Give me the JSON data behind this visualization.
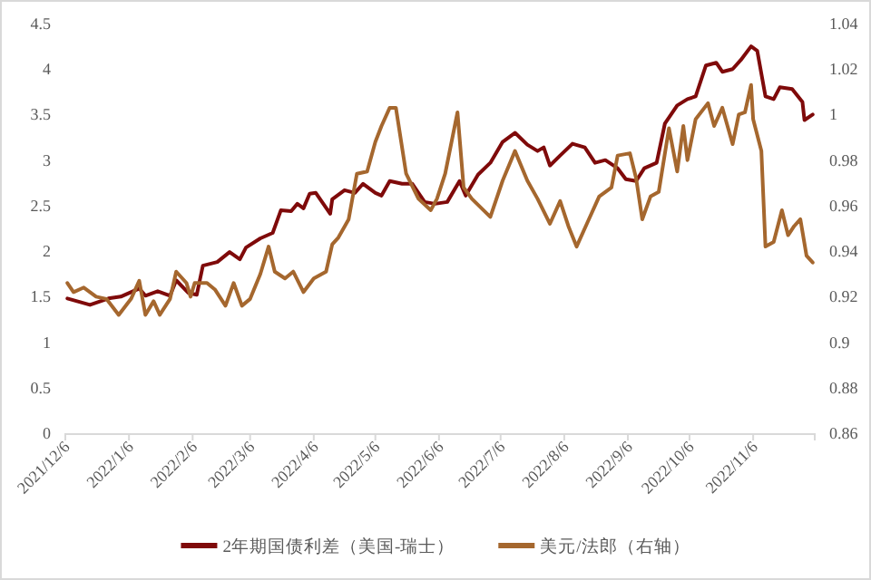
{
  "chart_data": {
    "type": "line",
    "legend": "bottom",
    "grid": false,
    "marker": "none",
    "line_style": "solid",
    "xlim": [
      "2021-12-06",
      "2022-12-06"
    ],
    "xticks": [
      {
        "value": "2021-12-06",
        "label": "2021/12/6"
      },
      {
        "value": "2022-01-06",
        "label": "2022/1/6"
      },
      {
        "value": "2022-02-06",
        "label": "2022/2/6"
      },
      {
        "value": "2022-03-06",
        "label": "2022/3/6"
      },
      {
        "value": "2022-04-06",
        "label": "2022/4/6"
      },
      {
        "value": "2022-05-06",
        "label": "2022/5/6"
      },
      {
        "value": "2022-06-06",
        "label": "2022/6/6"
      },
      {
        "value": "2022-07-06",
        "label": "2022/7/6"
      },
      {
        "value": "2022-08-06",
        "label": "2022/8/6"
      },
      {
        "value": "2022-09-06",
        "label": "2022/9/6"
      },
      {
        "value": "2022-10-06",
        "label": "2022/10/6"
      },
      {
        "value": "2022-11-06",
        "label": "2022/11/6"
      }
    ],
    "ylim": [
      0,
      4.5
    ],
    "yticks": [
      0,
      0.5,
      1,
      1.5,
      2,
      2.5,
      3,
      3.5,
      4,
      4.5
    ],
    "y2lim": [
      0.86,
      1.04
    ],
    "y2ticks": [
      0.86,
      0.88,
      0.9,
      0.92,
      0.94,
      0.96,
      0.98,
      1,
      1.02,
      1.04
    ],
    "series": [
      {
        "name": "2年期国债利差（美国-瑞士）",
        "color": "#7f0a0a",
        "axis": "y",
        "x": [
          "2021-12-07",
          "2021-12-18",
          "2021-12-27",
          "2022-01-02",
          "2022-01-11",
          "2022-01-14",
          "2022-01-20",
          "2022-01-26",
          "2022-01-29",
          "2022-02-04",
          "2022-02-08",
          "2022-02-11",
          "2022-02-18",
          "2022-02-24",
          "2022-03-01",
          "2022-03-04",
          "2022-03-11",
          "2022-03-17",
          "2022-03-21",
          "2022-03-26",
          "2022-03-29",
          "2022-04-01",
          "2022-04-04",
          "2022-04-07",
          "2022-04-14",
          "2022-04-15",
          "2022-04-21",
          "2022-04-26",
          "2022-04-30",
          "2022-05-06",
          "2022-05-09",
          "2022-05-13",
          "2022-05-19",
          "2022-05-24",
          "2022-05-30",
          "2022-06-04",
          "2022-06-10",
          "2022-06-16",
          "2022-06-19",
          "2022-06-25",
          "2022-07-01",
          "2022-07-07",
          "2022-07-13",
          "2022-07-19",
          "2022-07-24",
          "2022-07-27",
          "2022-07-30",
          "2022-08-04",
          "2022-08-10",
          "2022-08-16",
          "2022-08-21",
          "2022-08-26",
          "2022-09-01",
          "2022-09-05",
          "2022-09-10",
          "2022-09-14",
          "2022-09-20",
          "2022-09-24",
          "2022-09-30",
          "2022-10-05",
          "2022-10-09",
          "2022-10-14",
          "2022-10-19",
          "2022-10-22",
          "2022-10-27",
          "2022-10-31",
          "2022-11-05",
          "2022-11-08",
          "2022-11-12",
          "2022-11-16",
          "2022-11-19",
          "2022-11-25",
          "2022-11-30",
          "2022-12-01",
          "2022-12-05"
        ],
        "values": [
          1.48,
          1.41,
          1.48,
          1.5,
          1.59,
          1.51,
          1.56,
          1.51,
          1.68,
          1.54,
          1.52,
          1.84,
          1.88,
          1.99,
          1.91,
          2.04,
          2.14,
          2.2,
          2.45,
          2.44,
          2.52,
          2.47,
          2.63,
          2.64,
          2.41,
          2.57,
          2.67,
          2.64,
          2.74,
          2.64,
          2.61,
          2.77,
          2.74,
          2.74,
          2.54,
          2.52,
          2.54,
          2.77,
          2.61,
          2.84,
          2.97,
          3.2,
          3.3,
          3.17,
          3.1,
          3.14,
          2.94,
          3.05,
          3.18,
          3.14,
          2.97,
          3.0,
          2.91,
          2.79,
          2.77,
          2.91,
          2.97,
          3.4,
          3.6,
          3.67,
          3.7,
          4.04,
          4.07,
          3.97,
          4.0,
          4.1,
          4.25,
          4.2,
          3.7,
          3.67,
          3.8,
          3.78,
          3.64,
          3.44,
          3.5
        ]
      },
      {
        "name": "美元/法郎（右轴）",
        "color": "#a5672e",
        "axis": "y2",
        "x": [
          "2021-12-07",
          "2021-12-10",
          "2021-12-15",
          "2021-12-21",
          "2021-12-26",
          "2022-01-01",
          "2022-01-07",
          "2022-01-11",
          "2022-01-14",
          "2022-01-18",
          "2022-01-21",
          "2022-01-26",
          "2022-01-29",
          "2022-02-03",
          "2022-02-05",
          "2022-02-07",
          "2022-02-13",
          "2022-02-17",
          "2022-02-22",
          "2022-02-26",
          "2022-03-02",
          "2022-03-06",
          "2022-03-11",
          "2022-03-15",
          "2022-03-18",
          "2022-03-23",
          "2022-03-27",
          "2022-04-01",
          "2022-04-06",
          "2022-04-12",
          "2022-04-15",
          "2022-04-18",
          "2022-04-23",
          "2022-04-27",
          "2022-05-02",
          "2022-05-06",
          "2022-05-09",
          "2022-05-13",
          "2022-05-16",
          "2022-05-21",
          "2022-05-27",
          "2022-06-02",
          "2022-06-05",
          "2022-06-09",
          "2022-06-15",
          "2022-06-18",
          "2022-06-22",
          "2022-07-01",
          "2022-07-07",
          "2022-07-13",
          "2022-07-19",
          "2022-07-24",
          "2022-07-30",
          "2022-08-04",
          "2022-08-08",
          "2022-08-12",
          "2022-08-17",
          "2022-08-23",
          "2022-08-29",
          "2022-09-01",
          "2022-09-07",
          "2022-09-10",
          "2022-09-13",
          "2022-09-17",
          "2022-09-21",
          "2022-09-26",
          "2022-09-30",
          "2022-10-03",
          "2022-10-05",
          "2022-10-09",
          "2022-10-15",
          "2022-10-18",
          "2022-10-22",
          "2022-10-27",
          "2022-10-30",
          "2022-11-02",
          "2022-11-05",
          "2022-11-06",
          "2022-11-10",
          "2022-11-12",
          "2022-11-16",
          "2022-11-20",
          "2022-11-23",
          "2022-11-26",
          "2022-11-29",
          "2022-12-02",
          "2022-12-05"
        ],
        "values": [
          0.926,
          0.922,
          0.924,
          0.92,
          0.919,
          0.912,
          0.919,
          0.927,
          0.912,
          0.918,
          0.912,
          0.919,
          0.931,
          0.926,
          0.92,
          0.926,
          0.926,
          0.923,
          0.916,
          0.926,
          0.916,
          0.919,
          0.93,
          0.942,
          0.931,
          0.928,
          0.931,
          0.922,
          0.928,
          0.931,
          0.943,
          0.946,
          0.954,
          0.974,
          0.975,
          0.988,
          0.995,
          1.003,
          1.003,
          0.974,
          0.963,
          0.958,
          0.963,
          0.974,
          1.001,
          0.968,
          0.963,
          0.955,
          0.971,
          0.984,
          0.971,
          0.963,
          0.952,
          0.962,
          0.951,
          0.942,
          0.952,
          0.964,
          0.968,
          0.982,
          0.983,
          0.972,
          0.954,
          0.964,
          0.966,
          0.994,
          0.975,
          0.995,
          0.98,
          0.998,
          1.005,
          0.995,
          1.003,
          0.987,
          1.0,
          1.001,
          1.013,
          0.998,
          0.984,
          0.942,
          0.944,
          0.958,
          0.947,
          0.951,
          0.954,
          0.938,
          0.935
        ]
      }
    ]
  }
}
